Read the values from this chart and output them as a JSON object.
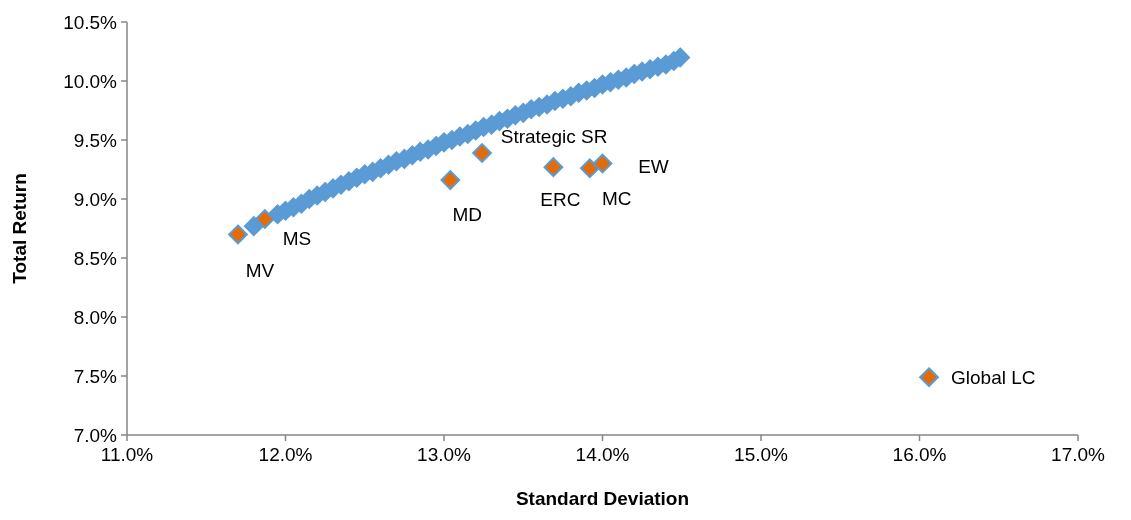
{
  "chart_data": {
    "type": "scatter",
    "xlabel": "Standard Deviation",
    "ylabel": "Total Return",
    "marker": "diamond",
    "xlim": [
      11.0,
      17.0
    ],
    "ylim": [
      7.0,
      10.5
    ],
    "xticks": [
      {
        "value": 11,
        "label": "11.0%"
      },
      {
        "value": 12,
        "label": "12.0%"
      },
      {
        "value": 13,
        "label": "13.0%"
      },
      {
        "value": 14,
        "label": "14.0%"
      },
      {
        "value": 15,
        "label": "15.0%"
      },
      {
        "value": 16,
        "label": "16.0%"
      },
      {
        "value": 17,
        "label": "17.0%"
      }
    ],
    "yticks": [
      {
        "value": 7,
        "label": "7.0%"
      },
      {
        "value": 7.5,
        "label": "7.5%"
      },
      {
        "value": 8,
        "label": "8.0%"
      },
      {
        "value": 8.5,
        "label": "8.5%"
      },
      {
        "value": 9,
        "label": "9.0%"
      },
      {
        "value": 9.5,
        "label": "9.5%"
      },
      {
        "value": 10,
        "label": "10.0%"
      },
      {
        "value": 10.5,
        "label": "10.5%"
      }
    ],
    "series": [
      {
        "color": "#5b9bd5",
        "x": [
          11.8,
          11.95,
          12.0,
          12.05,
          12.1,
          12.15,
          12.2,
          12.25,
          12.3,
          12.35,
          12.4,
          12.45,
          12.5,
          12.55,
          12.6,
          12.65,
          12.7,
          12.75,
          12.8,
          12.85,
          12.9,
          12.95,
          13.0,
          13.05,
          13.1,
          13.15,
          13.2,
          13.25,
          13.3,
          13.35,
          13.4,
          13.45,
          13.5,
          13.55,
          13.6,
          13.65,
          13.7,
          13.75,
          13.8,
          13.85,
          13.9,
          13.95,
          14.0,
          14.05,
          14.1,
          14.15,
          14.2,
          14.25,
          14.3,
          14.35,
          14.4,
          14.45,
          14.49
        ],
        "values": [
          8.77,
          8.87,
          8.9,
          8.93,
          8.96,
          9.0,
          9.03,
          9.06,
          9.09,
          9.12,
          9.15,
          9.18,
          9.21,
          9.23,
          9.26,
          9.29,
          9.32,
          9.34,
          9.37,
          9.4,
          9.42,
          9.45,
          9.48,
          9.5,
          9.53,
          9.55,
          9.58,
          9.61,
          9.63,
          9.66,
          9.68,
          9.71,
          9.73,
          9.76,
          9.78,
          9.8,
          9.83,
          9.85,
          9.87,
          9.9,
          9.92,
          9.94,
          9.97,
          9.99,
          10.01,
          10.03,
          10.06,
          10.08,
          10.1,
          10.12,
          10.14,
          10.17,
          10.2
        ]
      },
      {
        "color": "#e36c09",
        "x": [
          11.7,
          11.87,
          13.04,
          13.24,
          13.69,
          13.92,
          14.0,
          16.06
        ],
        "values": [
          8.7,
          8.83,
          9.16,
          9.39,
          9.27,
          9.26,
          9.3,
          7.49
        ]
      }
    ],
    "annotations": [
      {
        "text": "MV",
        "x": 11.7,
        "y": 8.7
      },
      {
        "text": "MS",
        "x": 11.87,
        "y": 8.83
      },
      {
        "text": "MD",
        "x": 13.04,
        "y": 9.16
      },
      {
        "text": "Strategic SR",
        "x": 13.24,
        "y": 9.39
      },
      {
        "text": "ERC",
        "x": 13.69,
        "y": 9.27
      },
      {
        "text": "MC",
        "x": 13.92,
        "y": 9.26
      },
      {
        "text": "EW",
        "x": 14.0,
        "y": 9.3
      },
      {
        "text": "Global LC",
        "x": 16.06,
        "y": 7.49
      }
    ]
  }
}
